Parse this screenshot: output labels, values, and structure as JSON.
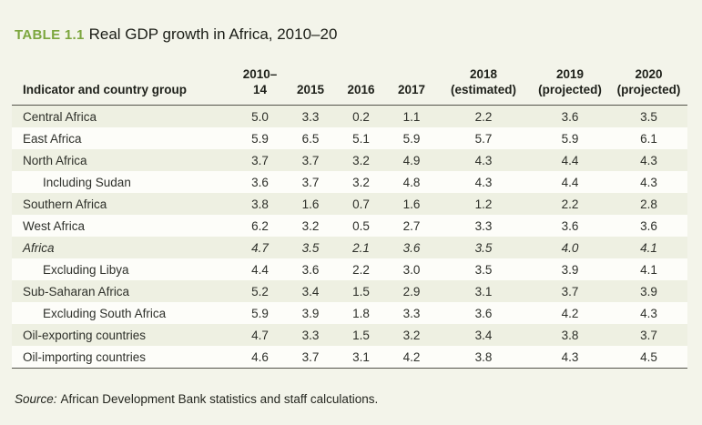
{
  "title": {
    "label": "TABLE 1.1",
    "text": "Real GDP growth in Africa, 2010–20"
  },
  "table": {
    "header": {
      "indicator": "Indicator and country group",
      "columns": [
        "2010–\n14",
        "2015",
        "2016",
        "2017",
        "2018\n(estimated)",
        "2019\n(projected)",
        "2020\n(projected)"
      ]
    },
    "rows": [
      {
        "label": "Central Africa",
        "indent": false,
        "italic": false,
        "values": [
          "5.0",
          "3.3",
          "0.2",
          "1.1",
          "2.2",
          "3.6",
          "3.5"
        ]
      },
      {
        "label": "East Africa",
        "indent": false,
        "italic": false,
        "values": [
          "5.9",
          "6.5",
          "5.1",
          "5.9",
          "5.7",
          "5.9",
          "6.1"
        ]
      },
      {
        "label": "North Africa",
        "indent": false,
        "italic": false,
        "values": [
          "3.7",
          "3.7",
          "3.2",
          "4.9",
          "4.3",
          "4.4",
          "4.3"
        ]
      },
      {
        "label": "Including Sudan",
        "indent": true,
        "italic": false,
        "values": [
          "3.6",
          "3.7",
          "3.2",
          "4.8",
          "4.3",
          "4.4",
          "4.3"
        ]
      },
      {
        "label": "Southern Africa",
        "indent": false,
        "italic": false,
        "values": [
          "3.8",
          "1.6",
          "0.7",
          "1.6",
          "1.2",
          "2.2",
          "2.8"
        ]
      },
      {
        "label": "West Africa",
        "indent": false,
        "italic": false,
        "values": [
          "6.2",
          "3.2",
          "0.5",
          "2.7",
          "3.3",
          "3.6",
          "3.6"
        ]
      },
      {
        "label": "Africa",
        "indent": false,
        "italic": true,
        "values": [
          "4.7",
          "3.5",
          "2.1",
          "3.6",
          "3.5",
          "4.0",
          "4.1"
        ]
      },
      {
        "label": "Excluding Libya",
        "indent": true,
        "italic": false,
        "values": [
          "4.4",
          "3.6",
          "2.2",
          "3.0",
          "3.5",
          "3.9",
          "4.1"
        ]
      },
      {
        "label": "Sub-Saharan Africa",
        "indent": false,
        "italic": false,
        "values": [
          "5.2",
          "3.4",
          "1.5",
          "2.9",
          "3.1",
          "3.7",
          "3.9"
        ]
      },
      {
        "label": "Excluding South Africa",
        "indent": true,
        "italic": false,
        "values": [
          "5.9",
          "3.9",
          "1.8",
          "3.3",
          "3.6",
          "4.2",
          "4.3"
        ]
      },
      {
        "label": "Oil-exporting countries",
        "indent": false,
        "italic": false,
        "values": [
          "4.7",
          "3.3",
          "1.5",
          "3.2",
          "3.4",
          "3.8",
          "3.7"
        ]
      },
      {
        "label": "Oil-importing countries",
        "indent": false,
        "italic": false,
        "values": [
          "4.6",
          "3.7",
          "3.1",
          "4.2",
          "3.8",
          "4.3",
          "4.5"
        ]
      }
    ]
  },
  "source": {
    "label": "Source:",
    "text": "African Development Bank statistics and staff calculations."
  },
  "colors": {
    "accent_green": "#7ca63e",
    "page_bg": "#f3f4ea",
    "row_shade": "#eef0e2",
    "row_white": "#fdfdf9",
    "rule": "#53534b",
    "text": "#2e302a"
  }
}
